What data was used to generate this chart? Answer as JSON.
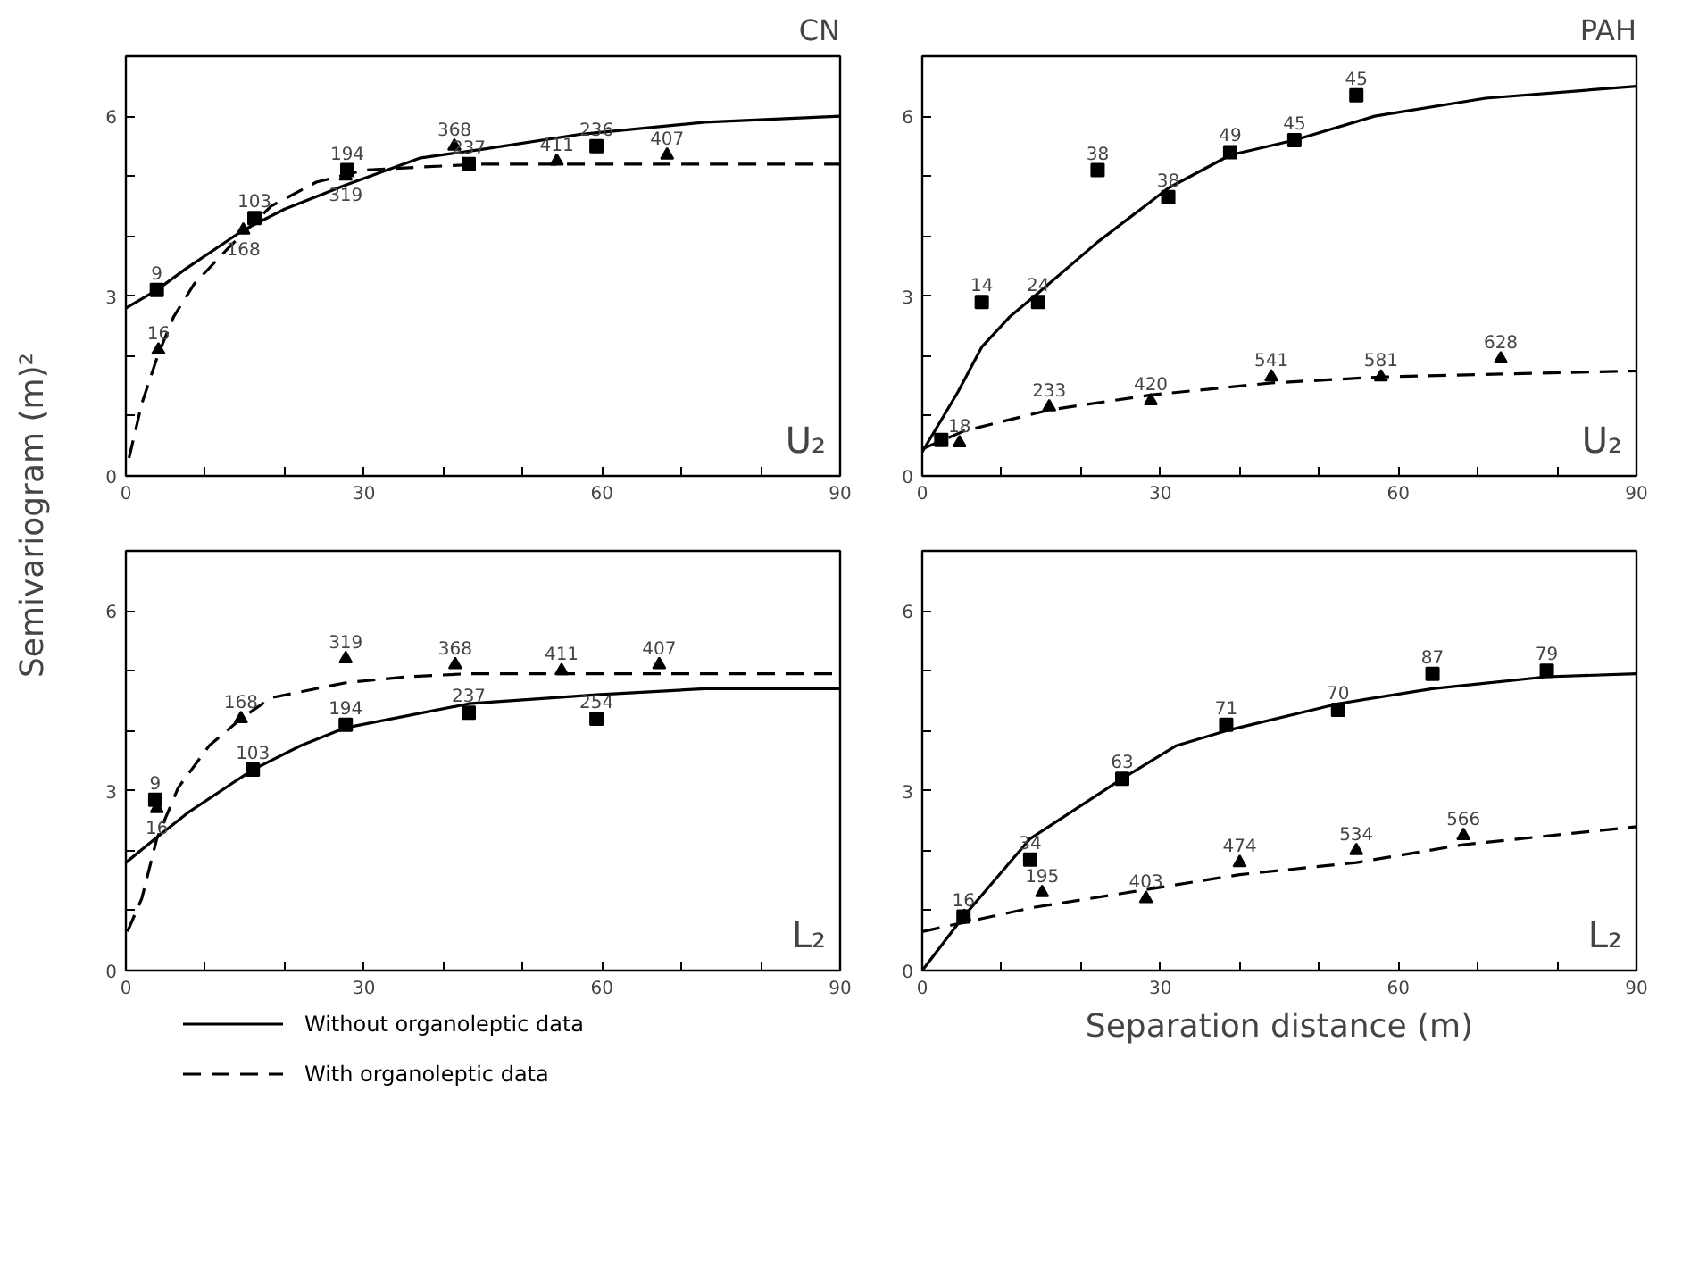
{
  "chart_data": [
    {
      "type": "line",
      "title": "CN",
      "ylabel": "Semivariogram (m)²",
      "xlim": [
        0,
        90
      ],
      "ylim": [
        0,
        7
      ],
      "xticks": [
        0,
        {
          "value": 10,
          "label": null
        },
        {
          "value": 20,
          "label": null
        },
        30,
        {
          "value": 40,
          "label": null
        },
        {
          "value": 50,
          "label": null
        },
        60,
        {
          "value": 70,
          "label": null
        },
        {
          "value": 80,
          "label": null
        },
        90
      ],
      "yticks": [
        0,
        {
          "value": 1,
          "label": null
        },
        {
          "value": 2,
          "label": null
        },
        3,
        {
          "value": 4,
          "label": null
        },
        {
          "value": 5,
          "label": null
        },
        6
      ],
      "annotations": [
        "U₂",
        {
          "text": "9",
          "x": 3.9,
          "y": 3.1
        },
        {
          "text": "103",
          "x": 16.2,
          "y": 4.3
        },
        {
          "text": "194",
          "x": 27.9,
          "y": 5.1
        },
        {
          "text": "237",
          "x": 43.2,
          "y": 5.2
        },
        {
          "text": "236",
          "x": 59.3,
          "y": 5.5
        },
        {
          "text": "16",
          "x": 4.1,
          "y": 2.1
        },
        {
          "text": "168",
          "x": 14.8,
          "y": 4.1
        },
        {
          "text": "319",
          "x": 27.7,
          "y": 5.0
        },
        {
          "text": "368",
          "x": 41.4,
          "y": 5.5
        },
        {
          "text": "411",
          "x": 54.3,
          "y": 5.25
        },
        {
          "text": "407",
          "x": 68.2,
          "y": 5.35
        }
      ],
      "series": [
        {
          "type": "scatter",
          "marker": "square",
          "color": "#000000",
          "x": [
            3.9,
            16.2,
            27.9,
            43.2,
            59.3
          ],
          "values": [
            3.1,
            4.3,
            5.1,
            5.2,
            5.5
          ]
        },
        {
          "type": "scatter",
          "marker": "triangle",
          "color": "#000000",
          "x": [
            4.1,
            14.8,
            27.7,
            41.4,
            54.3,
            68.2
          ],
          "values": [
            2.1,
            4.1,
            5.0,
            5.5,
            5.25,
            5.35
          ]
        },
        {
          "type": "line",
          "line_style": "solid",
          "color": "#000000",
          "x": [
            0,
            3.9,
            7.5,
            14.8,
            20,
            27.7,
            37,
            45,
            57.4,
            73,
            90
          ],
          "values": [
            2.8,
            3.1,
            3.45,
            4.1,
            4.45,
            4.85,
            5.3,
            5.45,
            5.7,
            5.9,
            6.0
          ]
        },
        {
          "type": "line",
          "line_style": "dashed",
          "color": "#000000",
          "x": [
            0.4,
            2,
            4,
            6,
            8.6,
            12.9,
            18.3,
            24,
            30,
            37,
            45,
            60,
            90
          ],
          "values": [
            0.3,
            1.2,
            2.0,
            2.65,
            3.2,
            3.8,
            4.5,
            4.9,
            5.1,
            5.15,
            5.2,
            5.2,
            5.2
          ]
        }
      ]
    },
    {
      "type": "line",
      "title": "PAH",
      "xlim": [
        0,
        90
      ],
      "ylim": [
        0,
        7
      ],
      "xticks": [
        0,
        {
          "value": 10,
          "label": null
        },
        {
          "value": 20,
          "label": null
        },
        30,
        {
          "value": 40,
          "label": null
        },
        {
          "value": 50,
          "label": null
        },
        60,
        {
          "value": 70,
          "label": null
        },
        {
          "value": 80,
          "label": null
        },
        90
      ],
      "yticks": [
        0,
        {
          "value": 1,
          "label": null
        },
        {
          "value": 2,
          "label": null
        },
        3,
        {
          "value": 4,
          "label": null
        },
        {
          "value": 5,
          "label": null
        },
        6
      ],
      "annotations": [
        "U₂",
        {
          "text": "14",
          "x": 7.5,
          "y": 2.9
        },
        {
          "text": "24",
          "x": 14.6,
          "y": 2.9
        },
        {
          "text": "38",
          "x": 22.1,
          "y": 5.1
        },
        {
          "text": "38",
          "x": 31.0,
          "y": 4.65
        },
        {
          "text": "49",
          "x": 38.8,
          "y": 5.4
        },
        {
          "text": "45",
          "x": 46.9,
          "y": 5.6
        },
        {
          "text": "45",
          "x": 54.7,
          "y": 6.35
        },
        {
          "text": "18",
          "x": 4.7,
          "y": 0.55
        },
        {
          "text": "233",
          "x": 16.0,
          "y": 1.15
        },
        {
          "text": "420",
          "x": 28.8,
          "y": 1.25
        },
        {
          "text": "541",
          "x": 44.0,
          "y": 1.65
        },
        {
          "text": "581",
          "x": 57.8,
          "y": 1.65
        },
        {
          "text": "628",
          "x": 72.9,
          "y": 1.95
        }
      ],
      "series": [
        {
          "type": "scatter",
          "marker": "square",
          "color": "#000000",
          "x": [
            2.4,
            7.5,
            14.6,
            22.1,
            31.0,
            38.8,
            46.9,
            54.7
          ],
          "values": [
            0.6,
            2.9,
            2.9,
            5.1,
            4.65,
            5.4,
            5.6,
            6.35
          ]
        },
        {
          "type": "scatter",
          "marker": "triangle",
          "color": "#000000",
          "x": [
            4.7,
            16.0,
            28.8,
            44.0,
            57.8,
            72.9
          ],
          "values": [
            0.55,
            1.15,
            1.25,
            1.65,
            1.65,
            1.95
          ]
        },
        {
          "type": "line",
          "line_style": "solid",
          "color": "#000000",
          "x": [
            0,
            4.5,
            7.5,
            11,
            14.6,
            22.1,
            31,
            38.8,
            46.9,
            57,
            71,
            90
          ],
          "values": [
            0.4,
            1.4,
            2.15,
            2.65,
            3.05,
            3.9,
            4.8,
            5.35,
            5.6,
            6.0,
            6.3,
            6.5
          ]
        },
        {
          "type": "line",
          "line_style": "dashed",
          "color": "#000000",
          "x": [
            0,
            5.3,
            16,
            28.8,
            44,
            57.8,
            72.9,
            90
          ],
          "values": [
            0.45,
            0.75,
            1.1,
            1.35,
            1.55,
            1.65,
            1.7,
            1.75
          ]
        }
      ]
    },
    {
      "type": "line",
      "xlim": [
        0,
        90
      ],
      "ylim": [
        0,
        7
      ],
      "legend": "bottom",
      "xticks": [
        0,
        {
          "value": 10,
          "label": null
        },
        {
          "value": 20,
          "label": null
        },
        30,
        {
          "value": 40,
          "label": null
        },
        {
          "value": 50,
          "label": null
        },
        60,
        {
          "value": 70,
          "label": null
        },
        {
          "value": 80,
          "label": null
        },
        90
      ],
      "yticks": [
        0,
        {
          "value": 1,
          "label": null
        },
        {
          "value": 2,
          "label": null
        },
        3,
        {
          "value": 4,
          "label": null
        },
        {
          "value": 5,
          "label": null
        },
        6
      ],
      "annotations": [
        "L₂",
        {
          "text": "9",
          "x": 3.7,
          "y": 2.85
        },
        {
          "text": "103",
          "x": 16.0,
          "y": 3.35
        },
        {
          "text": "194",
          "x": 27.7,
          "y": 4.1
        },
        {
          "text": "237",
          "x": 43.2,
          "y": 4.3
        },
        {
          "text": "254",
          "x": 59.3,
          "y": 4.2
        },
        {
          "text": "16",
          "x": 3.9,
          "y": 2.7
        },
        {
          "text": "168",
          "x": 14.5,
          "y": 4.2
        },
        {
          "text": "319",
          "x": 27.7,
          "y": 5.2
        },
        {
          "text": "368",
          "x": 41.5,
          "y": 5.1
        },
        {
          "text": "411",
          "x": 54.9,
          "y": 5.0
        },
        {
          "text": "407",
          "x": 67.2,
          "y": 5.1
        }
      ],
      "series": [
        {
          "type": "scatter",
          "marker": "square",
          "color": "#000000",
          "x": [
            3.7,
            16.0,
            27.7,
            43.2,
            59.3
          ],
          "values": [
            2.85,
            3.35,
            4.1,
            4.3,
            4.2
          ]
        },
        {
          "type": "scatter",
          "marker": "triangle",
          "color": "#000000",
          "x": [
            3.9,
            14.5,
            27.7,
            41.5,
            54.9,
            67.2
          ],
          "values": [
            2.7,
            4.2,
            5.2,
            5.1,
            5.0,
            5.1
          ]
        },
        {
          "type": "line",
          "name": "Without organoleptic data",
          "line_style": "solid",
          "color": "#000000",
          "x": [
            0,
            3.7,
            8,
            16,
            22,
            27.7,
            43.2,
            59.3,
            73,
            90
          ],
          "values": [
            1.8,
            2.2,
            2.65,
            3.35,
            3.75,
            4.05,
            4.45,
            4.6,
            4.7,
            4.7
          ]
        },
        {
          "type": "line",
          "name": "With organoleptic data",
          "line_style": "dashed",
          "color": "#000000",
          "x": [
            0.2,
            2,
            3.9,
            6.6,
            10.5,
            14.5,
            18.3,
            27.7,
            35.5,
            43,
            90
          ],
          "values": [
            0.65,
            1.2,
            2.2,
            3.05,
            3.75,
            4.2,
            4.55,
            4.8,
            4.9,
            4.95,
            4.95
          ]
        }
      ]
    },
    {
      "type": "line",
      "xlabel": "Separation distance (m)",
      "xlim": [
        0,
        90
      ],
      "ylim": [
        0,
        7
      ],
      "xticks": [
        0,
        {
          "value": 10,
          "label": null
        },
        {
          "value": 20,
          "label": null
        },
        30,
        {
          "value": 40,
          "label": null
        },
        {
          "value": 50,
          "label": null
        },
        60,
        {
          "value": 70,
          "label": null
        },
        {
          "value": 80,
          "label": null
        },
        90
      ],
      "yticks": [
        0,
        {
          "value": 1,
          "label": null
        },
        {
          "value": 2,
          "label": null
        },
        3,
        {
          "value": 4,
          "label": null
        },
        {
          "value": 5,
          "label": null
        },
        6
      ],
      "annotations": [
        "L₂",
        {
          "text": "16",
          "x": 5.2,
          "y": 0.9
        },
        {
          "text": "34",
          "x": 13.6,
          "y": 1.85
        },
        {
          "text": "63",
          "x": 25.2,
          "y": 3.2
        },
        {
          "text": "71",
          "x": 38.3,
          "y": 4.1
        },
        {
          "text": "70",
          "x": 52.4,
          "y": 4.35
        },
        {
          "text": "87",
          "x": 64.3,
          "y": 4.95
        },
        {
          "text": "79",
          "x": 78.7,
          "y": 5.0
        },
        {
          "text": "195",
          "x": 15.1,
          "y": 1.3
        },
        {
          "text": "403",
          "x": 28.2,
          "y": 1.2
        },
        {
          "text": "474",
          "x": 40.0,
          "y": 1.8
        },
        {
          "text": "534",
          "x": 54.7,
          "y": 2.0
        },
        {
          "text": "566",
          "x": 68.2,
          "y": 2.25
        }
      ],
      "series": [
        {
          "type": "scatter",
          "marker": "square",
          "color": "#000000",
          "x": [
            5.2,
            13.6,
            25.2,
            38.3,
            52.4,
            64.3,
            78.7
          ],
          "values": [
            0.9,
            1.85,
            3.2,
            4.1,
            4.35,
            4.95,
            5.0
          ]
        },
        {
          "type": "scatter",
          "marker": "triangle",
          "color": "#000000",
          "x": [
            5.3,
            15.1,
            28.2,
            40.0,
            54.7,
            68.2
          ],
          "values": [
            0.9,
            1.3,
            1.2,
            1.8,
            2.0,
            2.25
          ]
        },
        {
          "type": "line",
          "line_style": "solid",
          "color": "#000000",
          "x": [
            0,
            5.2,
            13.6,
            25.2,
            32,
            38.3,
            52.4,
            64.3,
            78.7,
            90
          ],
          "values": [
            0,
            0.9,
            2.2,
            3.2,
            3.75,
            4.0,
            4.45,
            4.7,
            4.9,
            4.95
          ]
        },
        {
          "type": "line",
          "line_style": "dashed",
          "color": "#000000",
          "x": [
            0,
            13.9,
            28.2,
            40,
            54.7,
            68.2,
            90
          ],
          "values": [
            0.65,
            1.05,
            1.35,
            1.6,
            1.8,
            2.1,
            2.4
          ]
        }
      ]
    }
  ]
}
